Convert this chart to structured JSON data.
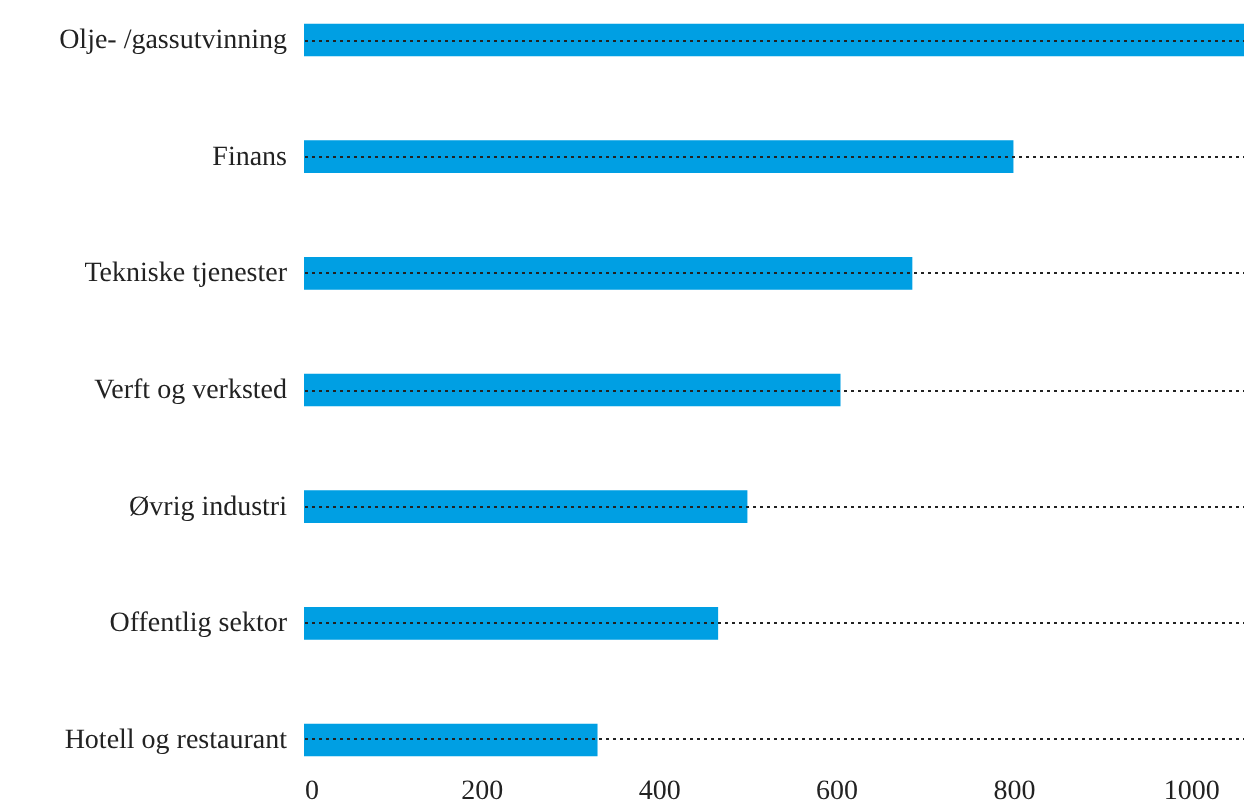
{
  "chart_data": {
    "type": "bar",
    "orientation": "horizontal",
    "categories": [
      "Olje- /gassutvinning",
      "Finans",
      "Tekniske tjenester",
      "Verft og verksted",
      "Øvrig industri",
      "Offentlig sektor",
      "Hotell og restaurant"
    ],
    "values": [
      1060,
      800,
      686,
      605,
      500,
      467,
      331
    ],
    "color": "#009fe3",
    "xlim": [
      0,
      1060
    ],
    "xticks": [
      0,
      200,
      400,
      600,
      800,
      1000
    ],
    "grid": "y"
  }
}
